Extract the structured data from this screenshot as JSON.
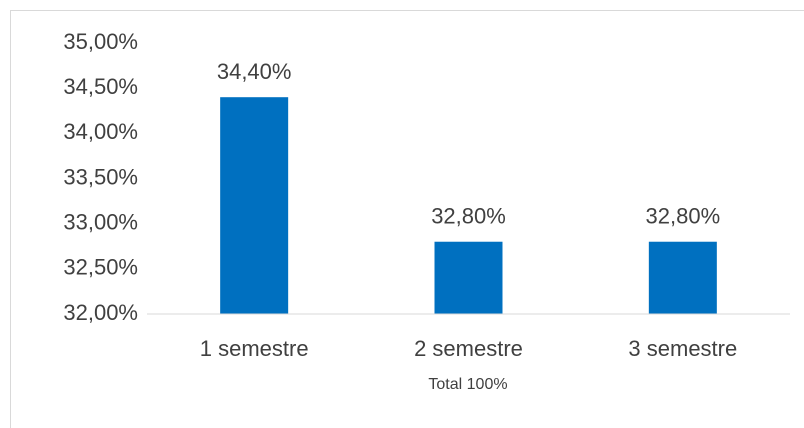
{
  "chart_data": {
    "type": "bar",
    "categories": [
      "1 semestre",
      "2 semestre",
      "3 semestre"
    ],
    "values": [
      34.4,
      32.8,
      32.8
    ],
    "value_labels": [
      "34,40%",
      "32,80%",
      "32,80%"
    ],
    "color": "#0070c0",
    "x_label": "Total 100%",
    "ylim": [
      32,
      35
    ],
    "yticks": [
      {
        "value": 32,
        "label": "32,00%"
      },
      {
        "value": 32.5,
        "label": "32,50%"
      },
      {
        "value": 33,
        "label": "33,00%"
      },
      {
        "value": 33.5,
        "label": "33,50%"
      },
      {
        "value": 34,
        "label": "34,00%"
      },
      {
        "value": 34.5,
        "label": "34,50%"
      },
      {
        "value": 35,
        "label": "35,00%"
      }
    ],
    "grid": false
  }
}
